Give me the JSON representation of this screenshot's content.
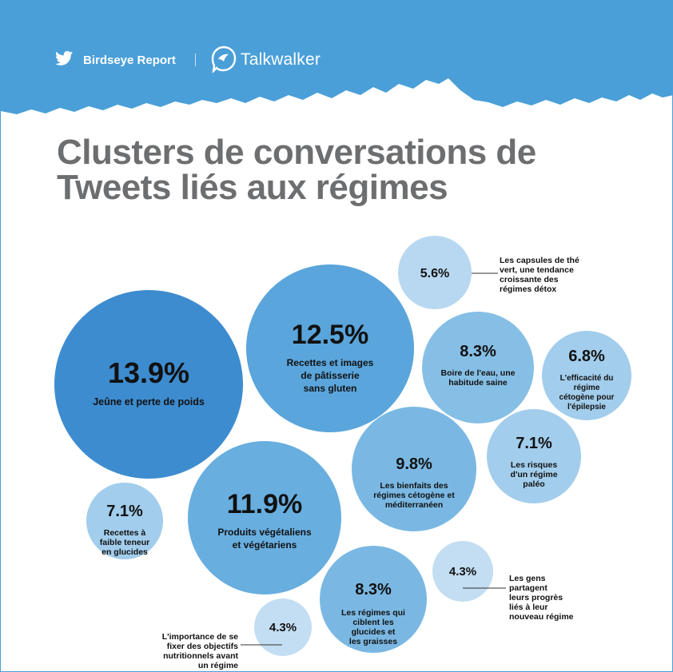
{
  "header": {
    "report_name": "Birdseye Report",
    "partner_name": "Talkwalker",
    "banner_color": "#4a9fd8"
  },
  "title_lines": [
    "Clusters de conversations de",
    "Tweets liés aux régimes"
  ],
  "chart_data": {
    "type": "bubble",
    "unit": "%",
    "items": [
      {
        "value": 13.9,
        "display": "13.9%",
        "label": [
          "Jeûne et perte de poids"
        ],
        "color": "#3d8ccf",
        "label_side": false
      },
      {
        "value": 12.5,
        "display": "12.5%",
        "label": [
          "Recettes et images",
          "de pâtisserie",
          "sans gluten"
        ],
        "color": "#5aa5db",
        "label_side": false
      },
      {
        "value": 11.9,
        "display": "11.9%",
        "label": [
          "Produits végétaliens",
          "et végétariens"
        ],
        "color": "#68aedf",
        "label_side": false
      },
      {
        "value": 9.8,
        "display": "9.8%",
        "label": [
          "Les bienfaits des",
          "régimes cétogène et",
          "méditerranéen"
        ],
        "color": "#7ab8e3",
        "label_side": false
      },
      {
        "value": 8.3,
        "display": "8.3%",
        "label": [
          "Boire de l'eau, une",
          "habitude saine"
        ],
        "color": "#86bfe5",
        "label_side": false
      },
      {
        "value": 8.3,
        "display": "8.3%",
        "label": [
          "Les régimes qui",
          "ciblent les",
          "glucides et",
          "les graisses"
        ],
        "color": "#7ab8e3",
        "label_side": false
      },
      {
        "value": 7.1,
        "display": "7.1%",
        "label": [
          "Les risques",
          "d'un régime",
          "paléo"
        ],
        "color": "#a2cdec",
        "label_side": false
      },
      {
        "value": 7.1,
        "display": "7.1%",
        "label": [
          "Recettes à",
          "faible teneur",
          "en glucides"
        ],
        "color": "#a2cdec",
        "label_side": false
      },
      {
        "value": 6.8,
        "display": "6.8%",
        "label": [
          "L'efficacité du",
          "régime",
          "cétogène pour",
          "l'épilepsie"
        ],
        "color": "#a2cdec",
        "label_side": false
      },
      {
        "value": 5.6,
        "display": "5.6%",
        "label": [
          "Les capsules de thé",
          "vert, une tendance",
          "croissante des",
          "régimes détox"
        ],
        "color": "#b7d8f0",
        "label_side": true
      },
      {
        "value": 4.3,
        "display": "4.3%",
        "label": [
          "Les gens",
          "partagent",
          "leurs progrès",
          "liés à leur",
          "nouveau régime"
        ],
        "color": "#c3def2",
        "label_side": true
      },
      {
        "value": 4.3,
        "display": "4.3%",
        "label": [
          "L'importance de se",
          "fixer des objectifs",
          "nutritionnels avant",
          "un régime"
        ],
        "color": "#c3def2",
        "label_side": true
      }
    ]
  }
}
